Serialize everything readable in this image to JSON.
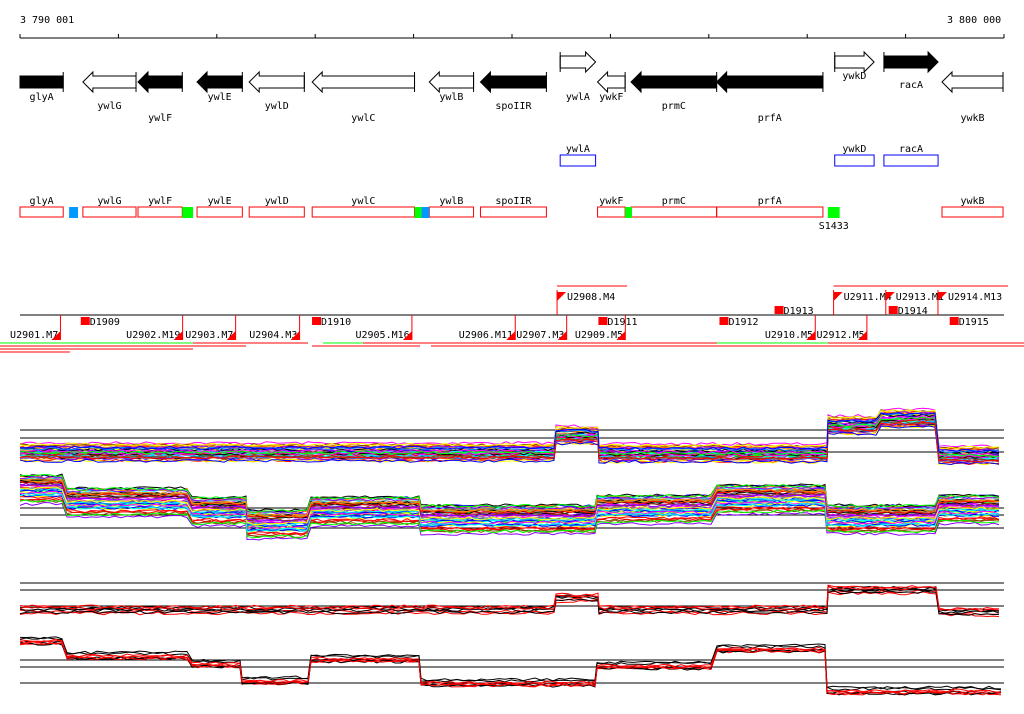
{
  "ruler": {
    "start_label": "3 790 001",
    "end_label": "3 800 000",
    "start": 3790001,
    "end": 3800000
  },
  "genes": [
    {
      "name": "glyA",
      "start": 3790001,
      "end": 3790440,
      "strand": "none",
      "fill": "black",
      "row": "main"
    },
    {
      "name": "ywlG",
      "start": 3790640,
      "end": 3791180,
      "strand": "-",
      "fill": "white",
      "row": "main"
    },
    {
      "name": "ywlF",
      "start": 3791200,
      "end": 3791650,
      "strand": "-",
      "fill": "black",
      "row": "main"
    },
    {
      "name": "ywlE",
      "start": 3791800,
      "end": 3792260,
      "strand": "-",
      "fill": "black",
      "row": "main"
    },
    {
      "name": "ywlD",
      "start": 3792330,
      "end": 3792890,
      "strand": "-",
      "fill": "white",
      "row": "main"
    },
    {
      "name": "ywlC",
      "start": 3792970,
      "end": 3794010,
      "strand": "-",
      "fill": "white",
      "row": "main"
    },
    {
      "name": "ywlB",
      "start": 3794160,
      "end": 3794610,
      "strand": "-",
      "fill": "white",
      "row": "main"
    },
    {
      "name": "spoIIR",
      "start": 3794680,
      "end": 3795350,
      "strand": "-",
      "fill": "black",
      "row": "main"
    },
    {
      "name": "ywlA",
      "start": 3795490,
      "end": 3795850,
      "strand": "+",
      "fill": "white",
      "row": "upper"
    },
    {
      "name": "ywkF",
      "start": 3795870,
      "end": 3796150,
      "strand": "-",
      "fill": "white",
      "row": "main"
    },
    {
      "name": "prmC",
      "start": 3796210,
      "end": 3797080,
      "strand": "-",
      "fill": "black",
      "row": "main"
    },
    {
      "name": "prfA",
      "start": 3797080,
      "end": 3798160,
      "strand": "-",
      "fill": "black",
      "row": "main"
    },
    {
      "name": "ywkD",
      "start": 3798280,
      "end": 3798680,
      "strand": "+",
      "fill": "white",
      "row": "upper"
    },
    {
      "name": "racA",
      "start": 3798780,
      "end": 3799330,
      "strand": "+",
      "fill": "black",
      "row": "upper"
    },
    {
      "name": "ywkB",
      "start": 3799370,
      "end": 3799990,
      "strand": "-",
      "fill": "white",
      "row": "main"
    }
  ],
  "blue_boxes": [
    {
      "name": "ywlA",
      "start": 3795490,
      "end": 3795850
    },
    {
      "name": "ywkD",
      "start": 3798280,
      "end": 3798680
    },
    {
      "name": "racA",
      "start": 3798780,
      "end": 3799330
    }
  ],
  "red_boxes": [
    "glyA",
    "ywlG",
    "ywlF",
    "ywlE",
    "ywlD",
    "ywlC",
    "ywlB",
    "spoIIR",
    "ywkF",
    "prmC",
    "prfA",
    "ywkB"
  ],
  "small_features": [
    {
      "color": "#0099ff",
      "start": 3790500,
      "end": 3790590
    },
    {
      "color": "#00ff00",
      "start": 3791650,
      "end": 3791760
    },
    {
      "color": "#00ff00",
      "start": 3794010,
      "end": 3794080
    },
    {
      "color": "#0099ff",
      "start": 3794080,
      "end": 3794160
    },
    {
      "color": "#00ff00",
      "start": 3796150,
      "end": 3796220
    },
    {
      "color": "#00ff00",
      "start": 3798210,
      "end": 3798330,
      "label": "S1433"
    }
  ],
  "segments": [
    {
      "label": "U2901.M7",
      "pos": "low",
      "x": 3789900
    },
    {
      "label": "D1909",
      "pos": "mid",
      "x": 3790710
    },
    {
      "label": "U2902.M19",
      "pos": "low",
      "x": 3791080
    },
    {
      "label": "U2903.M7",
      "pos": "low",
      "x": 3791680
    },
    {
      "label": "U2904.M3",
      "pos": "low",
      "x": 3792330
    },
    {
      "label": "D1910",
      "pos": "mid",
      "x": 3793060
    },
    {
      "label": "U2905.M16",
      "pos": "low",
      "x": 3793410
    },
    {
      "label": "U2906.M11",
      "pos": "low",
      "x": 3794460
    },
    {
      "label": "U2907.M3",
      "pos": "low",
      "x": 3794790
    },
    {
      "label": "U2908.M4",
      "pos": "high",
      "x": 3795560
    },
    {
      "label": "U2909.M5",
      "pos": "low",
      "x": 3795640
    },
    {
      "label": "D1911",
      "pos": "mid",
      "x": 3795970
    },
    {
      "label": "D1912",
      "pos": "mid",
      "x": 3797200
    },
    {
      "label": "U2910.M5",
      "pos": "low",
      "x": 3797570
    },
    {
      "label": "U2912.M5",
      "pos": "low",
      "x": 3797800
    },
    {
      "label": "D1913",
      "pos": "midhigh",
      "x": 3797760
    },
    {
      "label": "U2911.M4",
      "pos": "high",
      "x": 3798370
    },
    {
      "label": "U2913.M1",
      "pos": "high",
      "x": 3798870
    },
    {
      "label": "D1914",
      "pos": "midhigh",
      "x": 3798920
    },
    {
      "label": "U2914.M13",
      "pos": "high",
      "x": 3799390
    },
    {
      "label": "D1915",
      "pos": "mid",
      "x": 3799540
    }
  ],
  "colors": {
    "red": "#ff0000",
    "blue": "#0000ff",
    "green": "#00ff00"
  }
}
